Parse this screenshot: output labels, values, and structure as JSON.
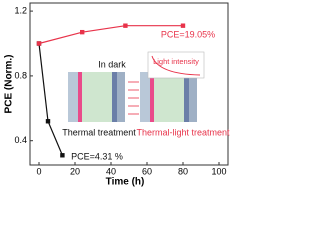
{
  "chart_data": {
    "type": "line",
    "x_label": "Time (h)",
    "y_label": "PCE (Norm.)",
    "xlim": [
      -5,
      105
    ],
    "ylim": [
      0.25,
      1.25
    ],
    "xticks": [
      0,
      20,
      40,
      60,
      80,
      100
    ],
    "yticks": [
      0.4,
      0.8,
      1.2
    ],
    "series": [
      {
        "name": "Thermal treatment",
        "color": "#111111",
        "x": [
          0,
          5,
          13
        ],
        "values": [
          1.0,
          0.52,
          0.31
        ]
      },
      {
        "name": "Thermal-light treatment",
        "color": "#e8334a",
        "x": [
          0,
          24,
          48,
          80
        ],
        "values": [
          1.0,
          1.07,
          1.11,
          1.11
        ]
      }
    ],
    "annotations": {
      "pce_high": "PCE=19.05%",
      "pce_low": "PCE=4.31 %",
      "dark": "In dark",
      "light": "Light intensity"
    }
  }
}
